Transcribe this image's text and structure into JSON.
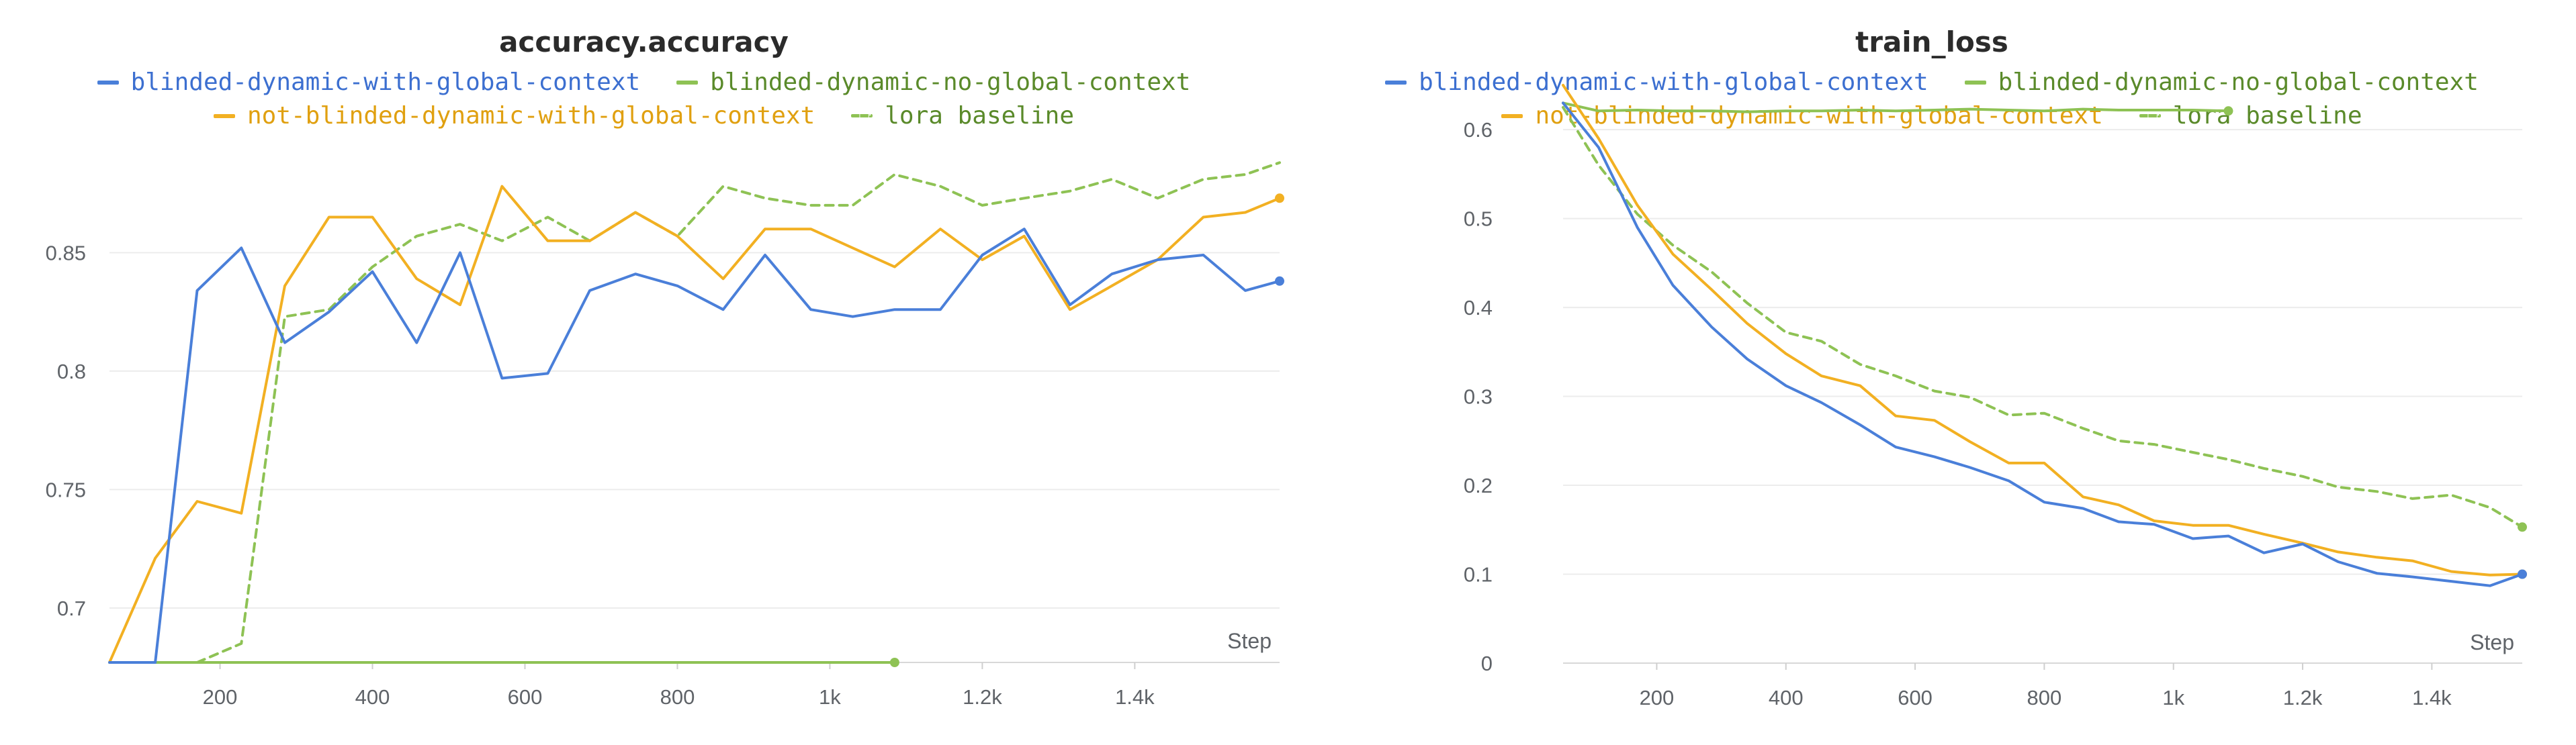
{
  "colors": {
    "blinded_with_global": "#4a7fd9",
    "blinded_no_global": "#8ec254",
    "not_blinded_with_global": "#f2b022",
    "lora_baseline": "#8ec254",
    "blinded_with_global_text": "#3c6fd0",
    "blinded_no_global_text": "#5a8a2a",
    "not_blinded_text": "#e0a010",
    "lora_text": "#5a8a2a"
  },
  "chart_data": [
    {
      "type": "line",
      "title": "accuracy.accuracy",
      "xlabel": "Step",
      "xlim": [
        55,
        1590
      ],
      "ylim": [
        0.677,
        0.9
      ],
      "xticks": [
        200,
        400,
        600,
        800,
        1000,
        1200,
        1400
      ],
      "xtick_labels": [
        "200",
        "400",
        "600",
        "800",
        "1k",
        "1.2k",
        "1.4k"
      ],
      "yticks": [
        0.7,
        0.75,
        0.8,
        0.85
      ],
      "ytick_labels": [
        "0.7",
        "0.75",
        "0.8",
        "0.85"
      ],
      "series": [
        {
          "name": "blinded-dynamic-with-global-context",
          "color_key": "blinded_with_global",
          "dashed": false,
          "end_marker": true,
          "x": [
            55,
            115,
            170,
            228,
            285,
            343,
            400,
            458,
            515,
            570,
            630,
            685,
            745,
            800,
            860,
            915,
            975,
            1030,
            1085,
            1145,
            1200,
            1255,
            1315,
            1370,
            1430,
            1490,
            1545,
            1590
          ],
          "y": [
            0.677,
            0.677,
            0.834,
            0.852,
            0.812,
            0.825,
            0.842,
            0.812,
            0.85,
            0.797,
            0.799,
            0.834,
            0.841,
            0.836,
            0.826,
            0.849,
            0.826,
            0.823,
            0.826,
            0.826,
            0.849,
            0.86,
            0.828,
            0.841,
            0.847,
            0.849,
            0.834,
            0.838
          ]
        },
        {
          "name": "blinded-dynamic-no-global-context",
          "color_key": "blinded_no_global",
          "dashed": false,
          "end_marker": true,
          "x": [
            55,
            1085
          ],
          "y": [
            0.677,
            0.677
          ]
        },
        {
          "name": "not-blinded-dynamic-with-global-context",
          "color_key": "not_blinded_with_global",
          "dashed": false,
          "end_marker": true,
          "x": [
            55,
            115,
            170,
            228,
            285,
            343,
            400,
            458,
            515,
            570,
            630,
            685,
            745,
            800,
            860,
            915,
            975,
            1030,
            1085,
            1145,
            1200,
            1255,
            1315,
            1370,
            1430,
            1490,
            1545,
            1590
          ],
          "y": [
            0.677,
            0.721,
            0.745,
            0.74,
            0.836,
            0.865,
            0.865,
            0.839,
            0.828,
            0.878,
            0.855,
            0.855,
            0.867,
            0.857,
            0.839,
            0.86,
            0.86,
            0.852,
            0.844,
            0.86,
            0.847,
            0.857,
            0.826,
            0.836,
            0.847,
            0.865,
            0.867,
            0.873
          ]
        },
        {
          "name": "lora baseline",
          "color_key": "lora_baseline",
          "dashed": true,
          "end_marker": false,
          "x": [
            170,
            228,
            285,
            343,
            400,
            458,
            515,
            570,
            630,
            685,
            745,
            800,
            860,
            915,
            975,
            1030,
            1085,
            1145,
            1200,
            1255,
            1315,
            1370,
            1430,
            1490,
            1545,
            1590
          ],
          "y": [
            0.677,
            0.685,
            0.823,
            0.826,
            0.844,
            0.857,
            0.862,
            0.855,
            0.865,
            0.855,
            0.867,
            0.857,
            0.878,
            0.873,
            0.87,
            0.87,
            0.883,
            0.878,
            0.87,
            0.873,
            0.876,
            0.881,
            0.873,
            0.881,
            0.883,
            0.888
          ]
        }
      ]
    },
    {
      "type": "line",
      "title": "train_loss",
      "xlabel": "Step",
      "xlim": [
        55,
        1540
      ],
      "ylim": [
        0,
        0.665
      ],
      "xticks": [
        200,
        400,
        600,
        800,
        1000,
        1200,
        1400
      ],
      "xtick_labels": [
        "200",
        "400",
        "600",
        "800",
        "1k",
        "1.2k",
        "1.4k"
      ],
      "yticks": [
        0,
        0.1,
        0.2,
        0.3,
        0.4,
        0.5,
        0.6
      ],
      "ytick_labels": [
        "0",
        "0.1",
        "0.2",
        "0.3",
        "0.4",
        "0.5",
        "0.6"
      ],
      "series": [
        {
          "name": "blinded-dynamic-with-global-context",
          "color_key": "blinded_with_global",
          "dashed": false,
          "end_marker": true,
          "x": [
            55,
            110,
            170,
            225,
            285,
            340,
            400,
            455,
            515,
            570,
            630,
            685,
            745,
            800,
            860,
            915,
            970,
            1030,
            1085,
            1140,
            1200,
            1255,
            1315,
            1370,
            1430,
            1490,
            1540
          ],
          "y": [
            0.63,
            0.58,
            0.49,
            0.425,
            0.378,
            0.342,
            0.312,
            0.293,
            0.268,
            0.243,
            0.232,
            0.22,
            0.205,
            0.181,
            0.174,
            0.159,
            0.156,
            0.14,
            0.143,
            0.124,
            0.134,
            0.114,
            0.101,
            0.097,
            0.092,
            0.087,
            0.1
          ]
        },
        {
          "name": "blinded-dynamic-no-global-context",
          "color_key": "blinded_no_global",
          "dashed": false,
          "end_marker": true,
          "x": [
            55,
            110,
            170,
            225,
            285,
            340,
            400,
            455,
            515,
            570,
            630,
            685,
            745,
            800,
            860,
            915,
            970,
            1030,
            1085
          ],
          "y": [
            0.63,
            0.621,
            0.622,
            0.621,
            0.621,
            0.62,
            0.621,
            0.621,
            0.622,
            0.621,
            0.622,
            0.623,
            0.622,
            0.621,
            0.623,
            0.622,
            0.622,
            0.622,
            0.621
          ]
        },
        {
          "name": "not-blinded-dynamic-with-global-context",
          "color_key": "not_blinded_with_global",
          "dashed": false,
          "end_marker": true,
          "x": [
            55,
            110,
            170,
            225,
            285,
            340,
            400,
            455,
            515,
            570,
            630,
            685,
            745,
            800,
            860,
            915,
            970,
            1030,
            1085,
            1140,
            1200,
            1255,
            1315,
            1370,
            1430,
            1490,
            1540
          ],
          "y": [
            0.65,
            0.59,
            0.515,
            0.46,
            0.42,
            0.382,
            0.348,
            0.323,
            0.312,
            0.278,
            0.273,
            0.249,
            0.225,
            0.225,
            0.187,
            0.178,
            0.16,
            0.155,
            0.155,
            0.145,
            0.135,
            0.125,
            0.119,
            0.115,
            0.103,
            0.099,
            0.1
          ]
        },
        {
          "name": "lora baseline",
          "color_key": "lora_baseline",
          "dashed": true,
          "end_marker": true,
          "x": [
            55,
            110,
            170,
            225,
            285,
            340,
            400,
            455,
            515,
            570,
            630,
            685,
            745,
            800,
            860,
            915,
            970,
            1030,
            1085,
            1140,
            1200,
            1255,
            1315,
            1370,
            1430,
            1490,
            1540
          ],
          "y": [
            0.625,
            0.56,
            0.505,
            0.47,
            0.44,
            0.405,
            0.372,
            0.362,
            0.336,
            0.323,
            0.306,
            0.299,
            0.279,
            0.281,
            0.264,
            0.25,
            0.246,
            0.237,
            0.229,
            0.219,
            0.21,
            0.198,
            0.193,
            0.185,
            0.189,
            0.175,
            0.153
          ]
        }
      ]
    }
  ]
}
